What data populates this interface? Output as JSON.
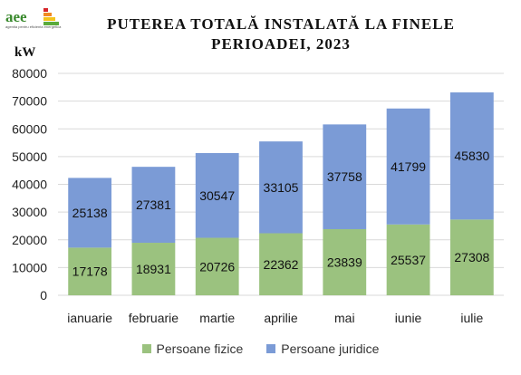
{
  "logo": {
    "text": "aee",
    "subtext": "agentia pentru eficienta energetica"
  },
  "chart_data": {
    "type": "bar",
    "stacked": true,
    "title_line1": "PUTEREA TOTALĂ INSTALATĂ LA FINELE",
    "title_line2": "PERIOADEI, 2023",
    "ylabel": "kW",
    "ylim": [
      0,
      80000
    ],
    "yticks": [
      0,
      10000,
      20000,
      30000,
      40000,
      50000,
      60000,
      70000,
      80000
    ],
    "grid": true,
    "legend_position": "bottom",
    "categories": [
      "ianuarie",
      "februarie",
      "martie",
      "aprilie",
      "mai",
      "iunie",
      "iulie"
    ],
    "series": [
      {
        "name": "Persoane fizice",
        "color": "#9bc27f",
        "values": [
          17178,
          18931,
          20726,
          22362,
          23839,
          25537,
          27308
        ]
      },
      {
        "name": "Persoane juridice",
        "color": "#7b9bd6",
        "values": [
          25138,
          27381,
          30547,
          33105,
          37758,
          41799,
          45830
        ]
      }
    ]
  }
}
